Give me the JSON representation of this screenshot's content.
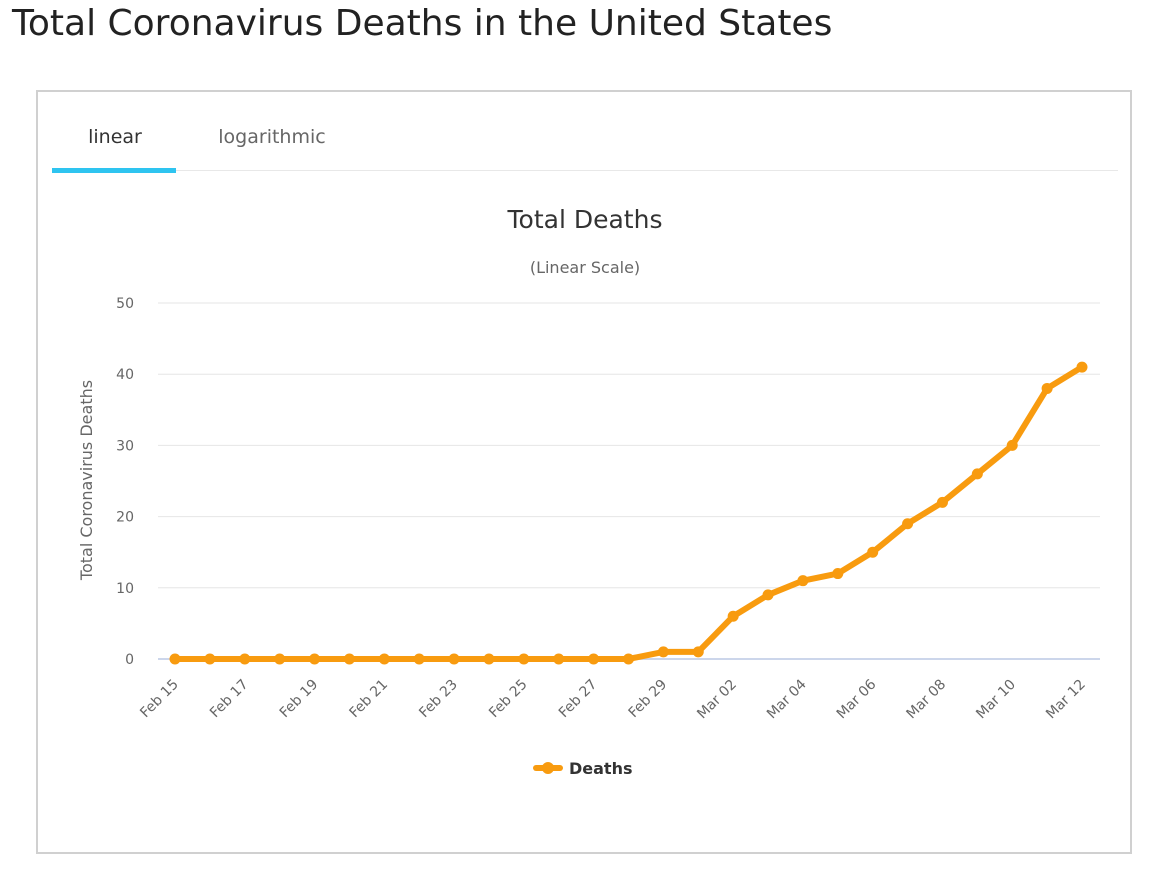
{
  "page": {
    "title": "Total Coronavirus Deaths in the United States"
  },
  "tabs": [
    {
      "label": "linear",
      "active": true
    },
    {
      "label": "logarithmic",
      "active": false
    }
  ],
  "colors": {
    "series": "#f89b0f",
    "tab_accent": "#2ec4f0",
    "grid": "#e6e6e6"
  },
  "chart_data": {
    "type": "line",
    "title": "Total Deaths",
    "subtitle": "(Linear Scale)",
    "xlabel": "",
    "ylabel": "Total Coronavirus Deaths",
    "ylim": [
      0,
      50
    ],
    "yticks": [
      0,
      10,
      20,
      30,
      40,
      50
    ],
    "grid": true,
    "legend_position": "bottom-center",
    "x": [
      "Feb 15",
      "Feb 16",
      "Feb 17",
      "Feb 18",
      "Feb 19",
      "Feb 20",
      "Feb 21",
      "Feb 22",
      "Feb 23",
      "Feb 24",
      "Feb 25",
      "Feb 26",
      "Feb 27",
      "Feb 28",
      "Feb 29",
      "Mar 01",
      "Mar 02",
      "Mar 03",
      "Mar 04",
      "Mar 05",
      "Mar 06",
      "Mar 07",
      "Mar 08",
      "Mar 09",
      "Mar 10",
      "Mar 11",
      "Mar 12"
    ],
    "xtick_labels": [
      "Feb 15",
      "Feb 17",
      "Feb 19",
      "Feb 21",
      "Feb 23",
      "Feb 25",
      "Feb 27",
      "Feb 29",
      "Mar 02",
      "Mar 04",
      "Mar 06",
      "Mar 08",
      "Mar 10",
      "Mar 12"
    ],
    "series": [
      {
        "name": "Deaths",
        "values": [
          0,
          0,
          0,
          0,
          0,
          0,
          0,
          0,
          0,
          0,
          0,
          0,
          0,
          0,
          1,
          1,
          6,
          9,
          11,
          12,
          15,
          19,
          22,
          26,
          30,
          38,
          41
        ]
      }
    ]
  }
}
